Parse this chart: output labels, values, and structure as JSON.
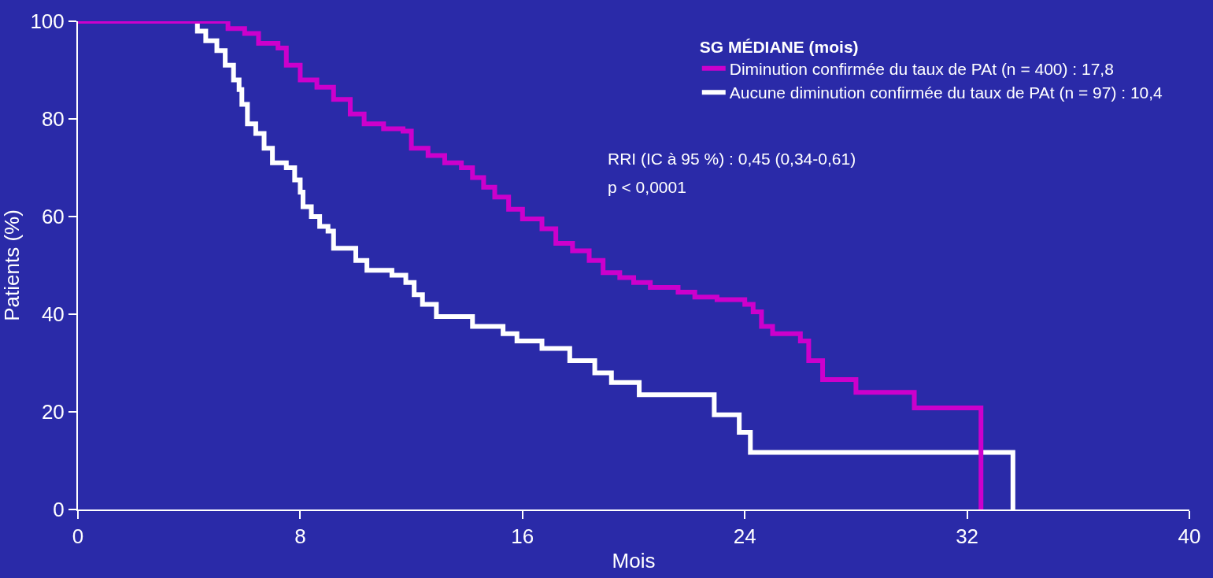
{
  "chart_data": {
    "type": "step",
    "xlabel": "Mois",
    "ylabel": "Patients (%)",
    "legend_title": "SG MÉDIANE (mois)",
    "legend": "top right",
    "grid": false,
    "xlim": [
      0,
      40
    ],
    "xticks": [
      0,
      8,
      16,
      24,
      32,
      40
    ],
    "ylim": [
      0,
      100
    ],
    "yticks": [
      0,
      20,
      40,
      60,
      80,
      100
    ],
    "annotations": [
      "RRI (IC à 95 %) : 0,45 (0,34-0,61)",
      "p < 0,0001"
    ],
    "series": [
      {
        "name": "Diminution confirmée du taux de PAt (n = 400) : 17,8",
        "color": "#cc00cc",
        "x": [
          0,
          5.0,
          5.4,
          6.0,
          6.5,
          7.2,
          7.5,
          8.0,
          8.6,
          9.2,
          9.8,
          10.3,
          11.0,
          11.7,
          12.0,
          12.6,
          13.2,
          13.8,
          14.2,
          14.6,
          15.0,
          15.5,
          16.0,
          16.7,
          17.2,
          17.8,
          18.4,
          18.9,
          19.5,
          20.0,
          20.6,
          21.6,
          22.2,
          23.0,
          24.0,
          24.3,
          24.6,
          25.0,
          26.0,
          26.3,
          26.8,
          28.0,
          30.1,
          32.5,
          32.5
        ],
        "values": [
          100,
          100,
          98.5,
          97.5,
          95.5,
          94.5,
          91,
          88,
          86.5,
          84,
          81,
          79,
          78,
          77.5,
          74,
          72.5,
          71,
          70,
          68,
          66,
          64,
          61.5,
          59.5,
          57.5,
          54.5,
          53,
          51,
          48.5,
          47.5,
          46.5,
          45.5,
          44.5,
          43.5,
          43,
          42,
          40.5,
          37.5,
          36,
          34.5,
          30.5,
          26.6,
          24,
          20.8,
          16.8,
          0
        ]
      },
      {
        "name": "Aucune diminution confirmée du taux de PAt (n = 97) : 10,4",
        "color": "#ffffff",
        "x": [
          0,
          4.1,
          4.3,
          4.6,
          5.0,
          5.3,
          5.6,
          5.8,
          5.9,
          6.1,
          6.4,
          6.7,
          7.0,
          7.5,
          7.8,
          8.0,
          8.1,
          8.4,
          8.7,
          9.0,
          9.2,
          10.0,
          10.4,
          11.3,
          11.8,
          12.1,
          12.4,
          12.9,
          14.2,
          15.3,
          15.8,
          16.7,
          17.7,
          18.6,
          19.2,
          20.2,
          22.9,
          23.8,
          24.2,
          33.65,
          33.65
        ],
        "values": [
          100,
          100,
          98,
          96,
          94,
          91,
          88,
          86,
          83,
          79,
          77,
          74,
          71,
          70,
          67.5,
          65,
          62,
          60,
          58,
          57,
          53.5,
          51,
          49,
          48,
          46.5,
          44,
          42,
          39.5,
          37.5,
          36,
          34.5,
          33,
          30.5,
          28,
          26,
          23.5,
          19.4,
          15.8,
          11.7,
          11.7,
          0
        ]
      }
    ]
  }
}
